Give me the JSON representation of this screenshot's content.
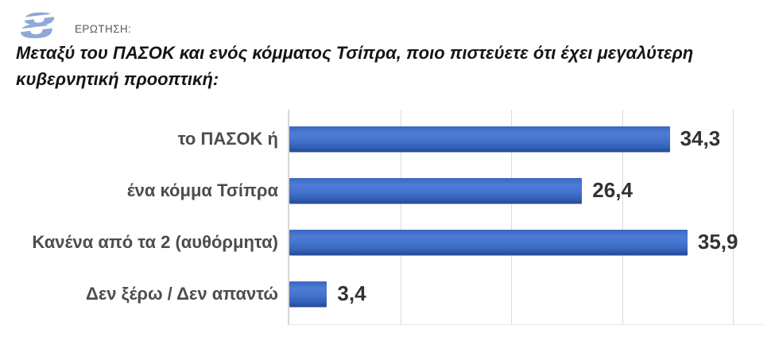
{
  "header": {
    "logo_icon": "stylized-s-logo-icon",
    "logo_glyph": "8",
    "label": "ΕΡΩΤΗΣΗ:"
  },
  "title": "Μεταξύ του ΠΑΣΟΚ και ενός κόμματος Τσίπρα, ποιο πιστεύετε ότι έχει μεγαλύτερη κυβερνητική προοπτική:",
  "colors": {
    "bar_blue": "#4373cd",
    "bar_edge_dark": "#224a92",
    "category_label": "#4d4d4d",
    "value_label": "#333333",
    "gridline": "#d9d9d9",
    "logo_blue": "#8fa9d6",
    "title_text": "#151515",
    "header_label": "#595959"
  },
  "chart_data": {
    "type": "bar",
    "orientation": "horizontal",
    "title": "Μεταξύ του ΠΑΣΟΚ και ενός κόμματος Τσίπρα, ποιο πιστεύετε ότι έχει μεγαλύτερη κυβερνητική προοπτική:",
    "categories": [
      "το ΠΑΣΟΚ ή",
      "ένα κόμμα Τσίπρα",
      "Κανένα από τα 2 (αυθόρμητα)",
      "Δεν ξέρω / Δεν απαντώ"
    ],
    "values": [
      34.3,
      26.4,
      35.9,
      3.4
    ],
    "value_labels": [
      "34,3",
      "26,4",
      "35,9",
      "3,4"
    ],
    "data_labels": true,
    "legend": false,
    "grid": true,
    "gridline_interval": 10,
    "xlim": [
      0,
      42.86
    ],
    "xlabel": "",
    "ylabel": ""
  }
}
